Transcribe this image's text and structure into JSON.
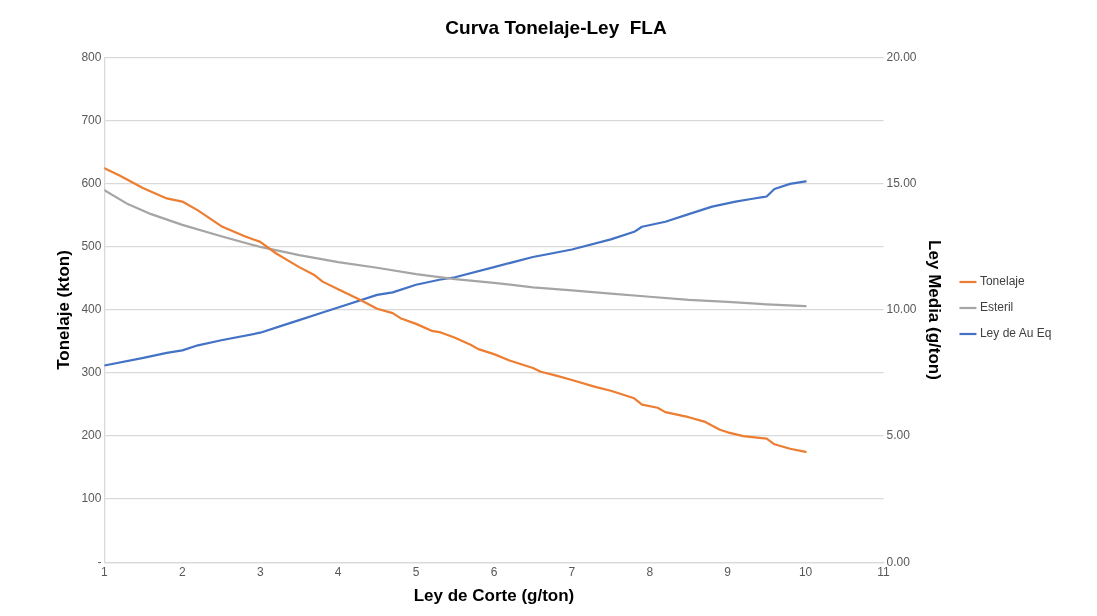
{
  "chart_data": {
    "type": "line",
    "title": "Curva Tonelaje-Ley  FLA",
    "xlabel": "Ley de Corte (g/ton)",
    "ylabel": "Tonelaje (kton)",
    "y2label": "Ley Media (g/ton)",
    "xlim": [
      1,
      11
    ],
    "xticks": [
      1,
      2,
      3,
      4,
      5,
      6,
      7,
      8,
      9,
      10,
      11
    ],
    "ylim": [
      0,
      800
    ],
    "yticks": [
      {
        "value": 0,
        "label": "-"
      },
      100,
      200,
      300,
      400,
      500,
      600,
      700,
      800
    ],
    "y2lim": [
      0,
      20
    ],
    "y2ticks": [
      {
        "value": 0,
        "label": "0.00"
      },
      {
        "value": 5,
        "label": "5.00"
      },
      {
        "value": 10,
        "label": "10.00"
      },
      {
        "value": 15,
        "label": "15.00"
      },
      {
        "value": 20,
        "label": "20.00"
      }
    ],
    "grid": "y",
    "legend": "right",
    "marker": "none",
    "line_style": "solid",
    "series": [
      {
        "name": "Tonelaje",
        "color": "#ed7d31",
        "x": [
          1,
          1.2,
          1.5,
          1.8,
          2,
          2.2,
          2.5,
          2.8,
          3,
          3.2,
          3.5,
          3.7,
          3.8,
          4,
          4.3,
          4.5,
          4.7,
          4.8,
          5,
          5.2,
          5.3,
          5.5,
          5.7,
          5.8,
          6,
          6.2,
          6.5,
          6.6,
          6.8,
          7,
          7.3,
          7.5,
          7.8,
          7.9,
          8.1,
          8.2,
          8.5,
          8.7,
          8.9,
          9,
          9.2,
          9.5,
          9.6,
          9.8,
          10
        ],
        "values": [
          625,
          613,
          593,
          577,
          572,
          558,
          533,
          517,
          508,
          490,
          468,
          455,
          445,
          433,
          415,
          402,
          395,
          387,
          378,
          367,
          365,
          356,
          345,
          338,
          330,
          320,
          308,
          302,
          296,
          289,
          278,
          272,
          260,
          250,
          245,
          238,
          230,
          223,
          210,
          206,
          200,
          196,
          187,
          180,
          175
        ]
      },
      {
        "name": "Esteril",
        "color": "#a5a5a5",
        "x": [
          1,
          1.3,
          1.6,
          2,
          2.5,
          3,
          3.5,
          4,
          4.5,
          5,
          5.5,
          6,
          6.5,
          7,
          7.5,
          8,
          8.5,
          9,
          9.5,
          10
        ],
        "values": [
          590,
          568,
          552,
          535,
          517,
          500,
          487,
          476,
          467,
          457,
          449,
          443,
          436,
          431,
          426,
          421,
          416,
          413,
          409,
          406
        ]
      },
      {
        "name": "Ley de Au Eq",
        "color": "#4472c4",
        "axis": "y2",
        "x": [
          1,
          1.5,
          1.8,
          2,
          2.2,
          2.5,
          3,
          3.3,
          3.5,
          3.8,
          4,
          4.5,
          4.7,
          5,
          5.3,
          5.5,
          6,
          6.5,
          7,
          7.5,
          7.8,
          7.9,
          8.2,
          8.5,
          8.8,
          9.1,
          9.3,
          9.5,
          9.6,
          9.8,
          10
        ],
        "values": [
          7.8,
          8.1,
          8.3,
          8.4,
          8.6,
          8.8,
          9.1,
          9.4,
          9.6,
          9.9,
          10.1,
          10.6,
          10.7,
          11,
          11.2,
          11.3,
          11.7,
          12.1,
          12.4,
          12.8,
          13.1,
          13.3,
          13.5,
          13.8,
          14.1,
          14.3,
          14.4,
          14.5,
          14.8,
          15,
          15.1
        ]
      }
    ]
  }
}
